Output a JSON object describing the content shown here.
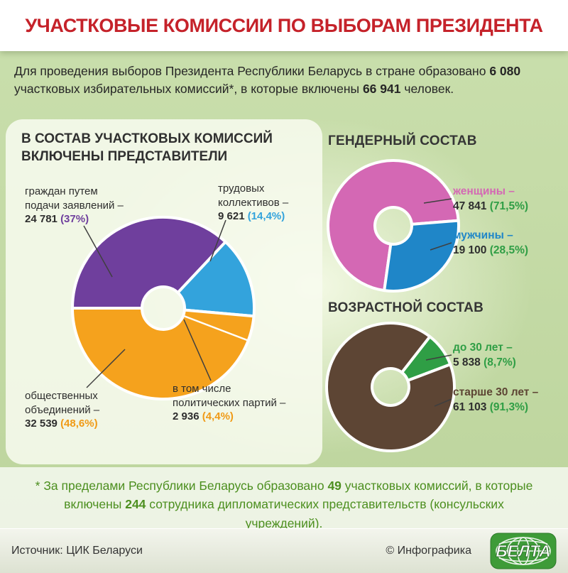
{
  "title": "УЧАСТКОВЫЕ КОМИССИИ ПО ВЫБОРАМ ПРЕЗИДЕНТА",
  "intro": {
    "t1": "Для проведения выборов Президента Республики Беларусь в стране образовано",
    "n1": "6 080",
    "t2": "участковых избирательных комиссий*, в которые включены",
    "n2": "66 941",
    "t3": "человек."
  },
  "composition": {
    "heading": "В СОСТАВ УЧАСТКОВЫХ КОМИССИЙ ВКЛЮЧЕНЫ ПРЕДСТАВИТЕЛИ",
    "citizens": {
      "label": "граждан путем подачи заявлений –",
      "value": "24 781",
      "pct": "(37%)"
    },
    "labor": {
      "label": "трудовых коллективов –",
      "value": "9 621",
      "pct": "(14,4%)"
    },
    "public": {
      "label": "общественных объединений –",
      "value": "32 539",
      "pct": "(48,6%)"
    },
    "parties": {
      "label": "в том числе политических партий –",
      "value": "2 936",
      "pct": "(4,4%)"
    }
  },
  "gender": {
    "heading": "ГЕНДЕРНЫЙ СОСТАВ",
    "women": {
      "label": "женщины –",
      "value": "47 841",
      "pct": "(71,5%)"
    },
    "men": {
      "label": "мужчины –",
      "value": "19 100",
      "pct": "(28,5%)"
    }
  },
  "age": {
    "heading": "ВОЗРАСТНОЙ СОСТАВ",
    "young": {
      "label": "до 30 лет –",
      "value": "5 838",
      "pct": "(8,7%)"
    },
    "old": {
      "label": "старше 30 лет –",
      "value": "61 103",
      "pct": "(91,3%)"
    }
  },
  "footnote": {
    "p1": "* За пределами Республики Беларусь образовано ",
    "n1": "49",
    "p2": " участковых комиссий, в которые включены ",
    "n2": "244",
    "p3": " сотрудника дипломатических представительств (консульских учреждений)."
  },
  "footer": {
    "source": "Источник: ЦИК Беларуси",
    "credit": "© Инфографика",
    "logo": "БЕЛТА"
  },
  "colors": {
    "title_red": "#c5222a",
    "text_dark": "#2e2e2e",
    "purple": "#6f3f9d",
    "light_blue": "#33a3dc",
    "orange": "#f09a16",
    "pink": "#d468b4",
    "blue": "#1f86c8",
    "green": "#2f9e45",
    "brown": "#5d4534",
    "footnote_green": "#4c8f1f"
  },
  "chart_data": [
    {
      "type": "pie",
      "title": "В состав участковых комиссий включены представители",
      "segments": [
        {
          "key": "citizens",
          "label": "граждан путем подачи заявлений",
          "value": 24781,
          "percent": 37.0,
          "color": "#6f3f9d"
        },
        {
          "key": "labor",
          "label": "трудовых коллективов",
          "value": 9621,
          "percent": 14.4,
          "color": "#33a3dc"
        },
        {
          "key": "public",
          "label": "общественных объединений",
          "value": 32539,
          "percent": 48.6,
          "color": "#f5a21d"
        }
      ],
      "annotation": {
        "label": "в том числе политических партий",
        "value": 2936,
        "percent": 4.4
      }
    },
    {
      "type": "pie",
      "title": "Гендерный состав",
      "segments": [
        {
          "key": "women",
          "label": "женщины",
          "value": 47841,
          "percent": 71.5,
          "color": "#d468b4"
        },
        {
          "key": "men",
          "label": "мужчины",
          "value": 19100,
          "percent": 28.5,
          "color": "#1f86c8"
        }
      ]
    },
    {
      "type": "pie",
      "title": "Возрастной состав",
      "segments": [
        {
          "key": "young",
          "label": "до 30 лет",
          "value": 5838,
          "percent": 8.7,
          "color": "#2f9e45"
        },
        {
          "key": "old",
          "label": "старше 30 лет",
          "value": 61103,
          "percent": 91.3,
          "color": "#5d4534"
        }
      ]
    }
  ]
}
